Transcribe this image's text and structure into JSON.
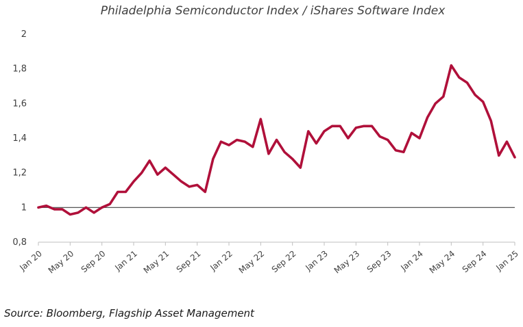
{
  "chart_data": {
    "type": "line",
    "title": "Philadelphia Semiconductor Index / iShares Software Index",
    "xlabel": "",
    "ylabel": "",
    "ylim": [
      0.8,
      2.0
    ],
    "yticks": [
      "0,8",
      "1",
      "1,2",
      "1,4",
      "1,6",
      "1,8",
      "2"
    ],
    "ytick_values": [
      0.8,
      1.0,
      1.2,
      1.4,
      1.6,
      1.8,
      2.0
    ],
    "xtick_labels": [
      "Jan 20",
      "May 20",
      "Sep 20",
      "Jan 21",
      "May 21",
      "Sep 21",
      "Jan 22",
      "May 22",
      "Sep 22",
      "Jan 23",
      "May 23",
      "Sep 23",
      "Jan 24",
      "May 24",
      "Sep 24",
      "Jan 25"
    ],
    "xtick_month_index": [
      0,
      4,
      8,
      12,
      16,
      20,
      24,
      28,
      32,
      36,
      40,
      44,
      48,
      52,
      56,
      60
    ],
    "reference_line": 1.0,
    "line_color": "#b0103a",
    "reference_color": "#404040",
    "series": [
      {
        "name": "Philadelphia Semiconductor Index / iShares Software Index",
        "values": [
          1.0,
          1.01,
          0.99,
          0.99,
          0.96,
          0.97,
          1.0,
          0.97,
          1.0,
          1.02,
          1.09,
          1.09,
          1.15,
          1.2,
          1.27,
          1.19,
          1.23,
          1.19,
          1.15,
          1.12,
          1.13,
          1.09,
          1.28,
          1.38,
          1.36,
          1.39,
          1.38,
          1.35,
          1.51,
          1.31,
          1.39,
          1.32,
          1.28,
          1.23,
          1.44,
          1.37,
          1.44,
          1.47,
          1.47,
          1.4,
          1.46,
          1.47,
          1.47,
          1.41,
          1.39,
          1.33,
          1.32,
          1.43,
          1.4,
          1.52,
          1.6,
          1.64,
          1.82,
          1.75,
          1.72,
          1.65,
          1.61,
          1.5,
          1.3,
          1.38,
          1.29
        ]
      }
    ]
  },
  "source_text": "Source: Bloomberg, Flagship Asset Management"
}
